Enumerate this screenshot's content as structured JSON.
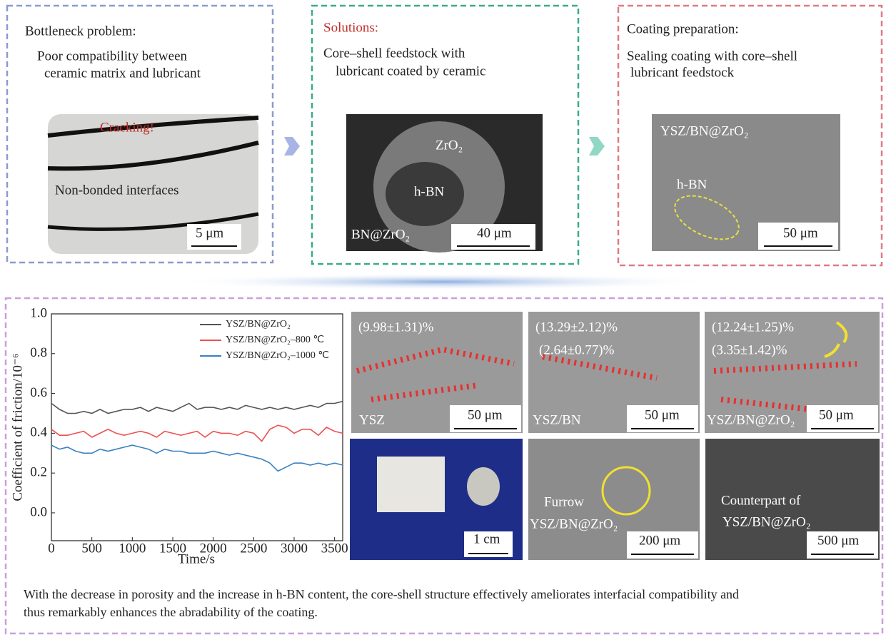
{
  "panels": [
    {
      "title": "Bottleneck problem:",
      "lines": [
        "Poor compatibility between",
        "ceramic matrix and lubricant"
      ],
      "labels": [
        "Cracking!",
        "Non-bonded interfaces",
        "5 μm"
      ]
    },
    {
      "title": "Solutions:",
      "lines": [
        "Core–shell feedstock with",
        "lubricant coated by ceramic"
      ],
      "labels": [
        "ZrO₂",
        "h-BN",
        "BN@ZrO₂",
        "40 μm"
      ]
    },
    {
      "title": "Coating preparation:",
      "lines": [
        "Sealing coating with core–shell",
        "lubricant feedstock"
      ],
      "labels": [
        "YSZ/BN@ZrO₂",
        "h-BN",
        "50 μm"
      ]
    }
  ],
  "maps": [
    {
      "labels": [
        "(9.98±1.31)%"
      ],
      "name": "YSZ",
      "scale": "50 μm"
    },
    {
      "labels": [
        "(13.29±2.12)%",
        "(2.64±0.77)%"
      ],
      "name": "YSZ/BN",
      "scale": "50 μm"
    },
    {
      "labels": [
        "(12.24±1.25)%",
        "(3.35±1.42)%"
      ],
      "name": "YSZ/BN@ZrO₂",
      "scale": "50 μm"
    }
  ],
  "photos": [
    {
      "labels": [],
      "scale": "1 cm"
    },
    {
      "labels": [
        "Furrow",
        "YSZ/BN@ZrO₂"
      ],
      "scale": "200 μm"
    },
    {
      "labels": [
        "Counterpart of",
        "YSZ/BN@ZrO₂"
      ],
      "scale": "500 μm"
    }
  ],
  "conclusion": [
    "With the decrease in porosity and the increase in h-BN content, the core-shell structure effectively ameliorates interfacial compatibility and",
    "thus remarkably enhances the abradability of the coating."
  ],
  "chart_data": {
    "type": "line",
    "x_label": "Time/s",
    "y_label": "Coefficient of friction/10⁻⁶",
    "x": [
      0,
      100,
      200,
      300,
      400,
      500,
      600,
      700,
      800,
      900,
      1000,
      1100,
      1200,
      1300,
      1400,
      1500,
      1600,
      1700,
      1800,
      1900,
      2000,
      2100,
      2200,
      2300,
      2400,
      2500,
      2600,
      2700,
      2800,
      2900,
      3000,
      3100,
      3200,
      3300,
      3400,
      3500,
      3600
    ],
    "series": [
      {
        "name": "YSZ/BN@ZrO₂",
        "color": "#555555",
        "values": [
          0.55,
          0.52,
          0.5,
          0.5,
          0.51,
          0.5,
          0.52,
          0.5,
          0.51,
          0.52,
          0.52,
          0.53,
          0.51,
          0.53,
          0.52,
          0.51,
          0.53,
          0.55,
          0.52,
          0.53,
          0.53,
          0.52,
          0.53,
          0.52,
          0.54,
          0.53,
          0.52,
          0.53,
          0.52,
          0.53,
          0.52,
          0.53,
          0.54,
          0.53,
          0.55,
          0.55,
          0.56
        ]
      },
      {
        "name": "YSZ/BN@ZrO₂–800 ℃",
        "color": "#f05050",
        "values": [
          0.42,
          0.39,
          0.39,
          0.4,
          0.41,
          0.38,
          0.4,
          0.42,
          0.4,
          0.39,
          0.4,
          0.41,
          0.4,
          0.38,
          0.41,
          0.4,
          0.39,
          0.4,
          0.41,
          0.38,
          0.41,
          0.4,
          0.4,
          0.39,
          0.41,
          0.4,
          0.36,
          0.42,
          0.44,
          0.43,
          0.4,
          0.42,
          0.42,
          0.39,
          0.43,
          0.41,
          0.4
        ]
      },
      {
        "name": "YSZ/BN@ZrO₂–1000 ℃",
        "color": "#3a80c0",
        "values": [
          0.34,
          0.32,
          0.33,
          0.31,
          0.3,
          0.3,
          0.32,
          0.31,
          0.32,
          0.33,
          0.34,
          0.33,
          0.32,
          0.3,
          0.32,
          0.31,
          0.31,
          0.3,
          0.3,
          0.3,
          0.31,
          0.3,
          0.29,
          0.3,
          0.29,
          0.28,
          0.27,
          0.25,
          0.21,
          0.23,
          0.25,
          0.25,
          0.24,
          0.25,
          0.24,
          0.25,
          0.24
        ]
      }
    ],
    "xlim": [
      0,
      3600
    ],
    "xticks": [
      0,
      500,
      1000,
      1500,
      2000,
      2500,
      3000,
      3500
    ],
    "ylim": [
      -0.14,
      1.0
    ],
    "yticks": [
      {
        "value": 0,
        "label": "0.0"
      },
      {
        "value": 0.2,
        "label": "0.2"
      },
      {
        "value": 0.4,
        "label": "0.4"
      },
      {
        "value": 0.6,
        "label": "0.6"
      },
      {
        "value": 0.8,
        "label": "0.8"
      },
      {
        "value": 1.0,
        "label": "1.0"
      }
    ]
  }
}
